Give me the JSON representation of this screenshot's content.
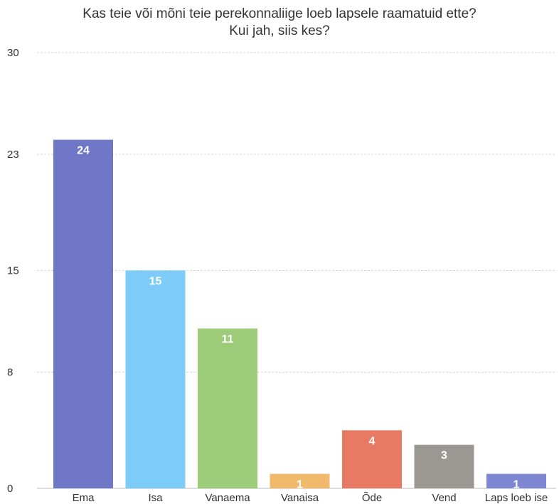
{
  "chart_data": {
    "type": "bar",
    "title_lines": [
      "Kas teie või mõni teie perekonnaliige loeb lapsele raamatuid ette?",
      "Kui jah, siis kes?"
    ],
    "categories": [
      "Ema",
      "Isa",
      "Vanaema",
      "Vanaisa",
      "Õde",
      "Vend",
      "Laps loeb ise"
    ],
    "values": [
      24,
      15,
      11,
      1,
      4,
      3,
      1
    ],
    "colors": [
      "#6f77c6",
      "#7dccf7",
      "#9ccb79",
      "#f1b96b",
      "#e87a63",
      "#9b9893",
      "#7f86d2"
    ],
    "yticks": [
      0,
      8,
      15,
      23,
      30
    ],
    "ylim": [
      0,
      30
    ],
    "grid": true,
    "xlabel": "",
    "ylabel": ""
  }
}
